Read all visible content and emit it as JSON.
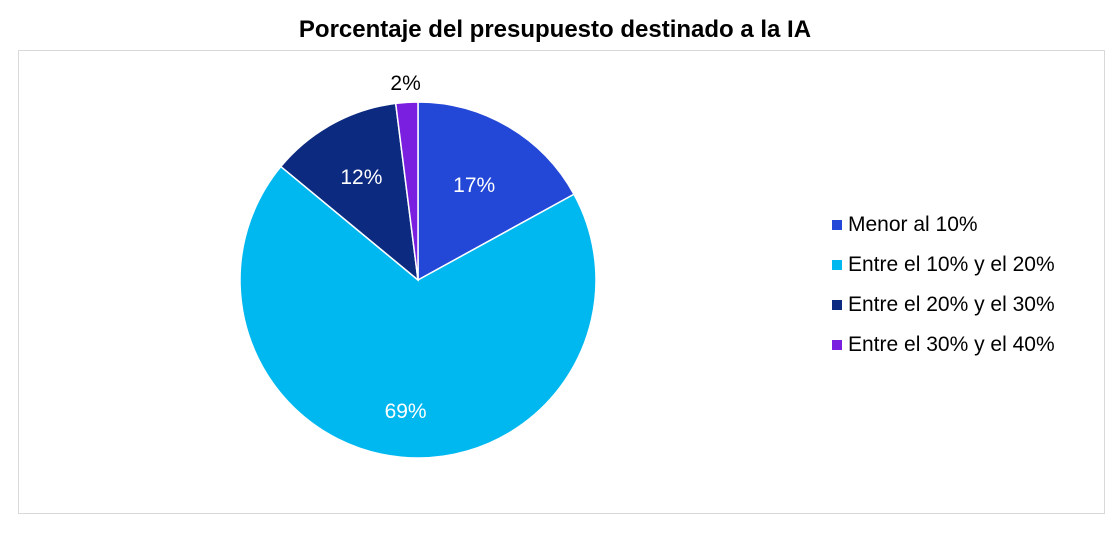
{
  "chart_data": {
    "type": "pie",
    "title": "Porcentaje del presupuesto destinado a la IA",
    "categories": [
      "Menor al 10%",
      "Entre el 10% y el 20%",
      "Entre el 20% y el 30%",
      "Entre el 30% y el 40%"
    ],
    "values": [
      17,
      69,
      12,
      2
    ],
    "data_labels": [
      "17%",
      "69%",
      "12%",
      "2%"
    ],
    "colors": [
      "#2347d6",
      "#00b8f0",
      "#0b2a80",
      "#7a1fe0"
    ],
    "label_colors": [
      "#ffffff",
      "#ffffff",
      "#ffffff",
      "#000000"
    ],
    "legend_position": "right"
  }
}
